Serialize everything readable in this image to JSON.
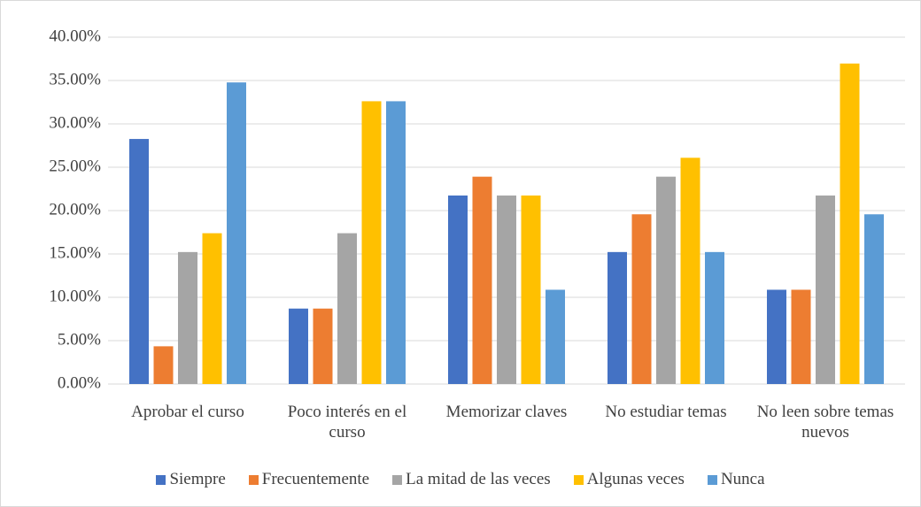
{
  "chart_data": {
    "type": "bar",
    "categories": [
      "Aprobar el curso",
      "Poco interés en el curso",
      "Memorizar claves",
      "No estudiar temas",
      "No leen sobre temas nuevos"
    ],
    "series": [
      {
        "name": "Siempre",
        "color": "#4472c4",
        "values": [
          28.26,
          8.7,
          21.74,
          15.22,
          10.87
        ]
      },
      {
        "name": "Frecuentemente",
        "color": "#ed7d31",
        "values": [
          4.35,
          8.7,
          23.91,
          19.57,
          10.87
        ]
      },
      {
        "name": "La mitad de las veces",
        "color": "#a5a5a5",
        "values": [
          15.22,
          17.39,
          21.74,
          23.91,
          21.74
        ]
      },
      {
        "name": "Algunas veces",
        "color": "#ffc000",
        "values": [
          17.39,
          32.61,
          21.74,
          26.09,
          36.96
        ]
      },
      {
        "name": "Nunca",
        "color": "#5b9bd5",
        "values": [
          34.78,
          32.61,
          10.87,
          15.22,
          19.57
        ]
      }
    ],
    "ylim": [
      0,
      40
    ],
    "yticks": [
      {
        "value": 0,
        "label": "0.00%"
      },
      {
        "value": 5,
        "label": "5.00%"
      },
      {
        "value": 10,
        "label": "10.00%"
      },
      {
        "value": 15,
        "label": "15.00%"
      },
      {
        "value": 20,
        "label": "20.00%"
      },
      {
        "value": 25,
        "label": "25.00%"
      },
      {
        "value": 30,
        "label": "30.00%"
      },
      {
        "value": 35,
        "label": "35.00%"
      },
      {
        "value": 40,
        "label": "40.00%"
      }
    ],
    "grid": true,
    "legend": "bottom"
  }
}
